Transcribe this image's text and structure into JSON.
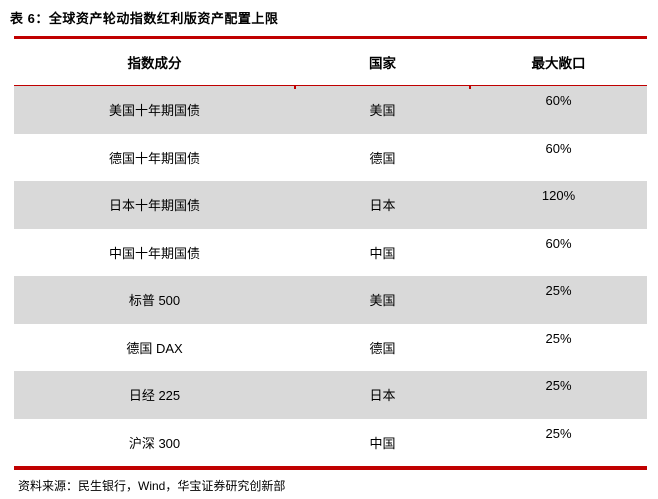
{
  "title": "表 6：全球资产轮动指数红利版资产配置上限",
  "colors": {
    "accent_red": "#C00000",
    "row_shade": "#D9D9D9",
    "text": "#000000",
    "background": "#FFFFFF"
  },
  "table": {
    "columns": [
      "指数成分",
      "国家",
      "最大敞口"
    ],
    "rows": [
      {
        "component": "美国十年期国债",
        "country": "美国",
        "max_exposure": "60%"
      },
      {
        "component": "德国十年期国债",
        "country": "德国",
        "max_exposure": "60%"
      },
      {
        "component": "日本十年期国债",
        "country": "日本",
        "max_exposure": "120%"
      },
      {
        "component": "中国十年期国债",
        "country": "中国",
        "max_exposure": "60%"
      },
      {
        "component": "标普 500",
        "country": "美国",
        "max_exposure": "25%"
      },
      {
        "component": "德国 DAX",
        "country": "德国",
        "max_exposure": "25%"
      },
      {
        "component": "日经 225",
        "country": "日本",
        "max_exposure": "25%"
      },
      {
        "component": "沪深 300",
        "country": "中国",
        "max_exposure": "25%"
      }
    ]
  },
  "source": "资料来源：民生银行，Wind，华宝证券研究创新部"
}
